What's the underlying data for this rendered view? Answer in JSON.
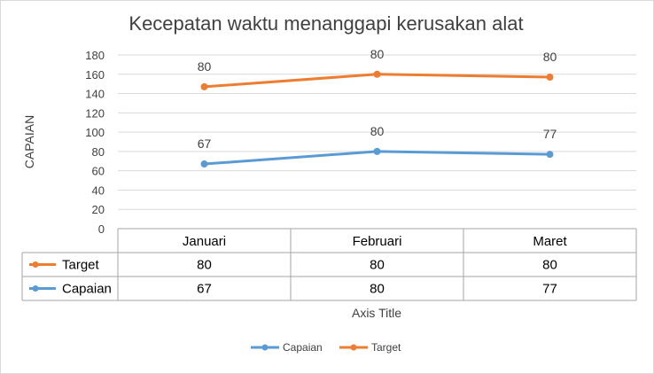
{
  "chart_data": {
    "type": "line",
    "title": "Kecepatan waktu menanggapi kerusakan alat",
    "xlabel": "Axis Title",
    "ylabel": "CAPAIAN",
    "ylim": [
      0,
      180
    ],
    "yticks": [
      "0",
      "20",
      "40",
      "60",
      "80",
      "100",
      "120",
      "140",
      "160",
      "180"
    ],
    "grid": true,
    "stacked": true,
    "legend_position": "bottom",
    "categories": [
      "Januari",
      "Februari",
      "Maret"
    ],
    "series": [
      {
        "name": "Target",
        "color": "#ED7D31",
        "values": [
          80,
          80,
          80
        ],
        "plotted": [
          147,
          160,
          157
        ],
        "labels": [
          "80",
          "80",
          "80"
        ]
      },
      {
        "name": "Capaian",
        "color": "#5B9BD5",
        "values": [
          67,
          80,
          77
        ],
        "plotted": [
          67,
          80,
          77
        ],
        "labels": [
          "67",
          "80",
          "77"
        ]
      }
    ],
    "legend": [
      {
        "name": "Capaian",
        "color": "#5B9BD5"
      },
      {
        "name": "Target",
        "color": "#ED7D31"
      }
    ]
  }
}
